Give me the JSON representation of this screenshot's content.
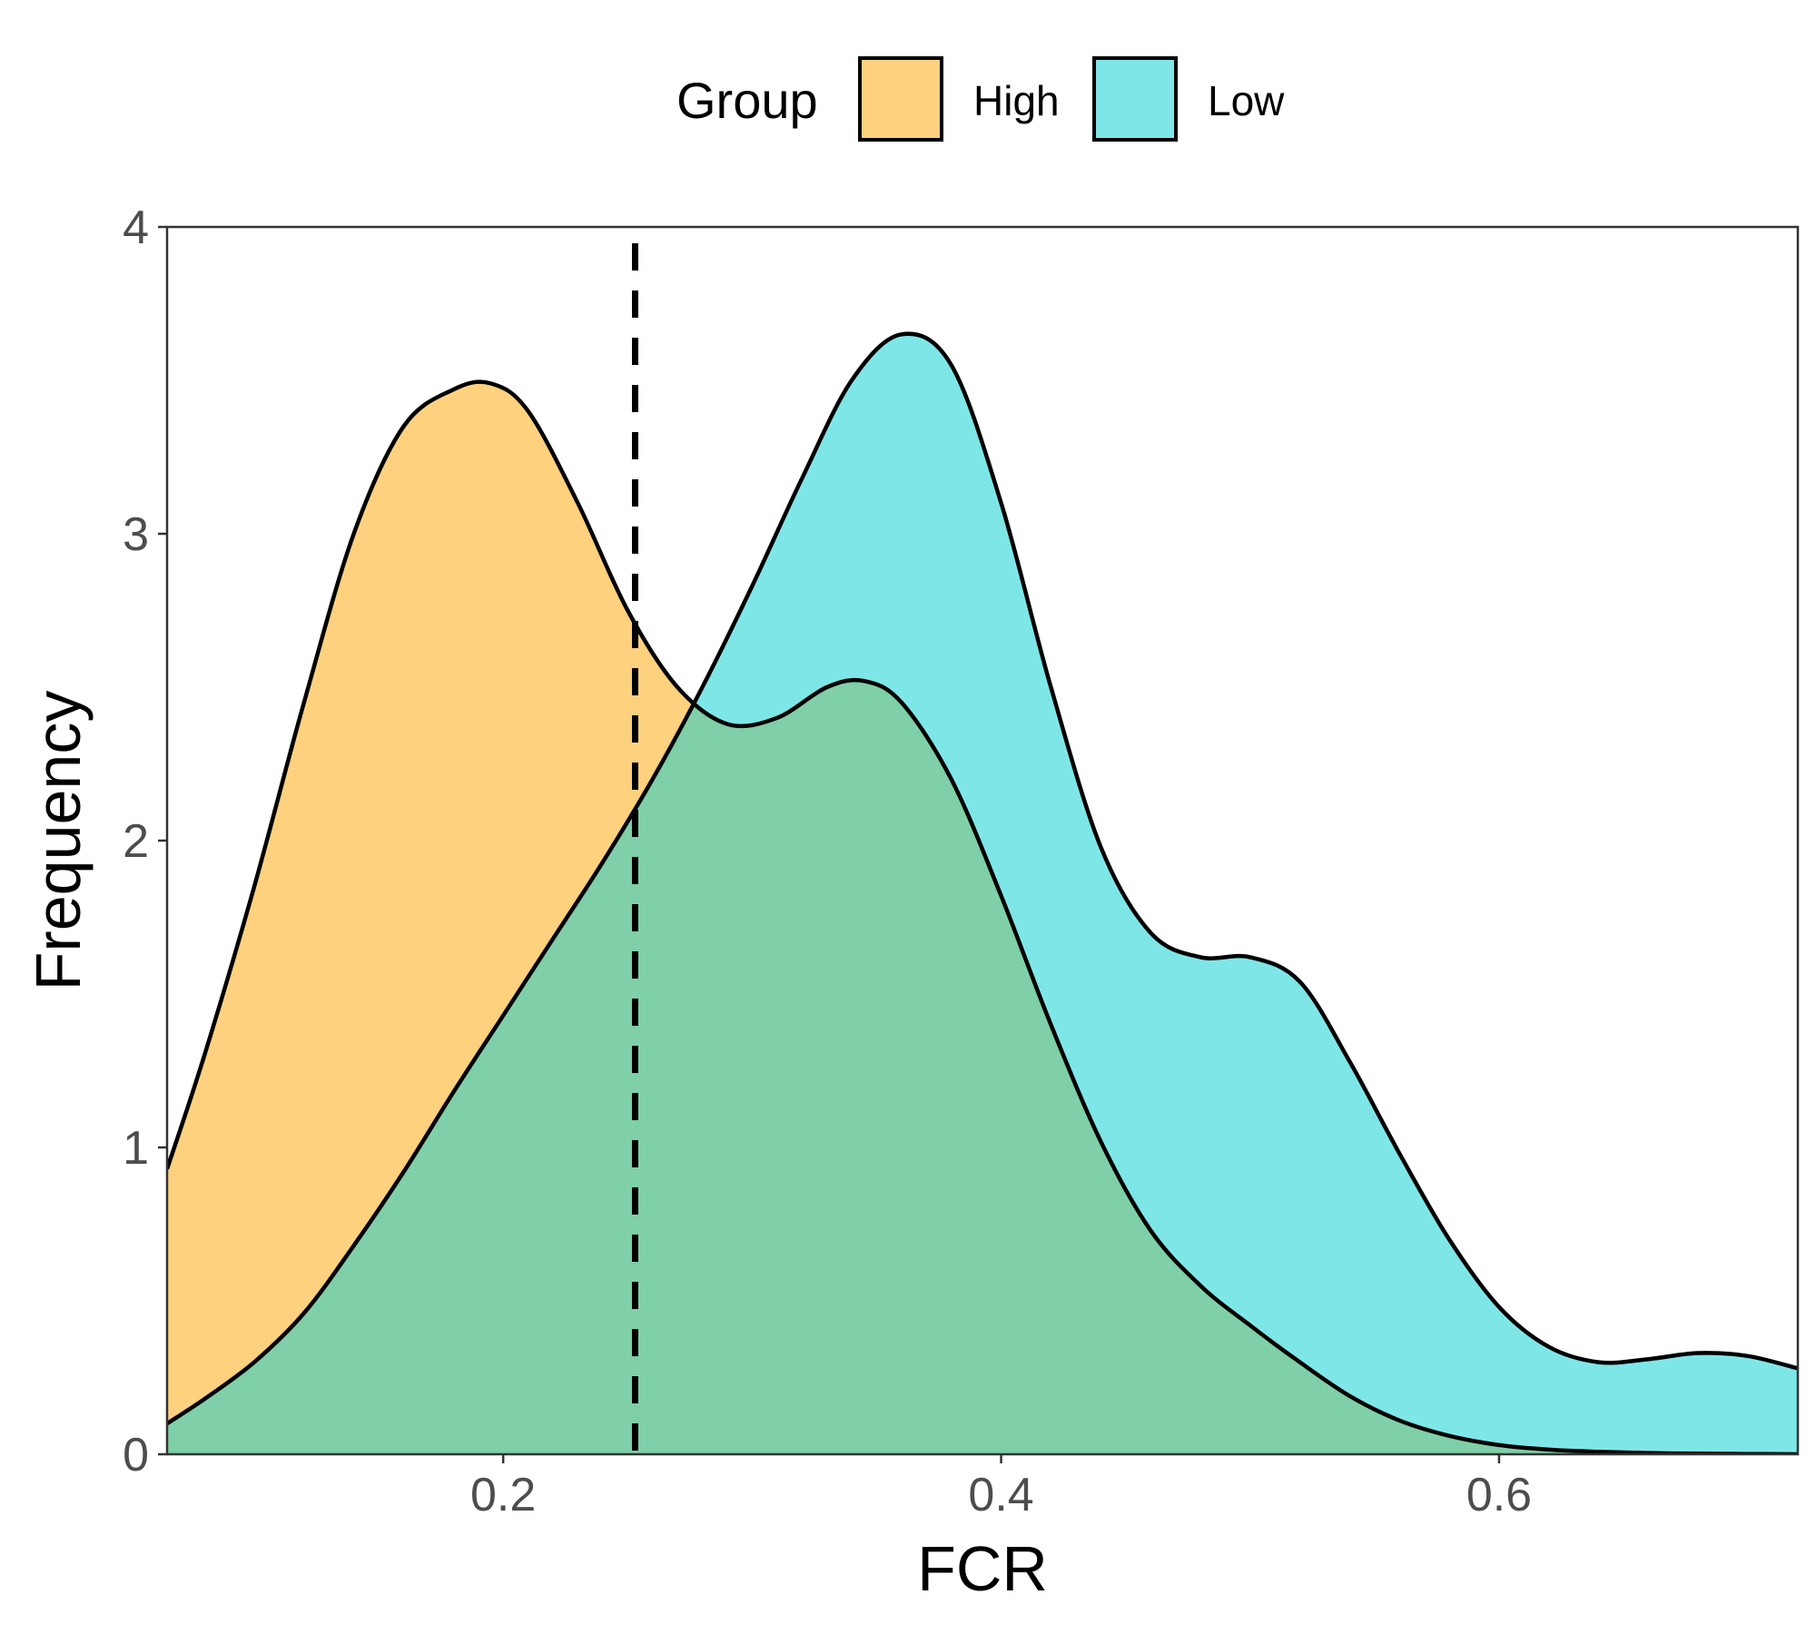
{
  "chart_data": {
    "type": "area",
    "subtype": "density",
    "title": "",
    "xlabel": "FCR",
    "ylabel": "Frequency",
    "xlim": [
      0.065,
      0.72
    ],
    "ylim": [
      0,
      4
    ],
    "x_ticks": [
      0.2,
      0.4,
      0.6
    ],
    "x_tick_labels": [
      "0.2",
      "0.4",
      "0.6"
    ],
    "y_ticks": [
      0,
      1,
      2,
      3,
      4
    ],
    "y_tick_labels": [
      "0",
      "1",
      "2",
      "3",
      "4"
    ],
    "grid": false,
    "legend": {
      "title": "Group",
      "position": "top",
      "entries": [
        "High",
        "Low"
      ]
    },
    "vline": {
      "x": 0.253,
      "style": "dashed",
      "color": "#000000"
    },
    "series": [
      {
        "name": "High",
        "color": "#FDBE49",
        "opacity": 0.7,
        "x": [
          0.065,
          0.08,
          0.1,
          0.12,
          0.14,
          0.16,
          0.18,
          0.195,
          0.21,
          0.23,
          0.25,
          0.27,
          0.29,
          0.31,
          0.33,
          0.345,
          0.36,
          0.38,
          0.4,
          0.42,
          0.44,
          0.46,
          0.48,
          0.5,
          0.52,
          0.54,
          0.56,
          0.58,
          0.6,
          0.62,
          0.64,
          0.66,
          0.68,
          0.7,
          0.72
        ],
        "y": [
          0.93,
          1.3,
          1.85,
          2.45,
          3.0,
          3.35,
          3.47,
          3.49,
          3.4,
          3.1,
          2.75,
          2.5,
          2.38,
          2.4,
          2.5,
          2.52,
          2.45,
          2.2,
          1.82,
          1.4,
          1.02,
          0.73,
          0.55,
          0.42,
          0.3,
          0.19,
          0.11,
          0.06,
          0.03,
          0.015,
          0.008,
          0.004,
          0.002,
          0.001,
          0.0
        ]
      },
      {
        "name": "Low",
        "color": "#00CED1",
        "opacity": 0.5,
        "x": [
          0.065,
          0.08,
          0.1,
          0.12,
          0.14,
          0.16,
          0.18,
          0.2,
          0.22,
          0.24,
          0.26,
          0.28,
          0.3,
          0.32,
          0.34,
          0.36,
          0.38,
          0.4,
          0.42,
          0.44,
          0.46,
          0.48,
          0.5,
          0.52,
          0.54,
          0.56,
          0.58,
          0.6,
          0.62,
          0.64,
          0.66,
          0.68,
          0.7,
          0.72
        ],
        "y": [
          0.1,
          0.18,
          0.3,
          0.46,
          0.68,
          0.92,
          1.18,
          1.43,
          1.68,
          1.93,
          2.2,
          2.5,
          2.83,
          3.18,
          3.5,
          3.65,
          3.55,
          3.1,
          2.5,
          1.98,
          1.7,
          1.62,
          1.62,
          1.54,
          1.28,
          0.98,
          0.7,
          0.48,
          0.35,
          0.3,
          0.31,
          0.33,
          0.32,
          0.28
        ]
      }
    ]
  }
}
